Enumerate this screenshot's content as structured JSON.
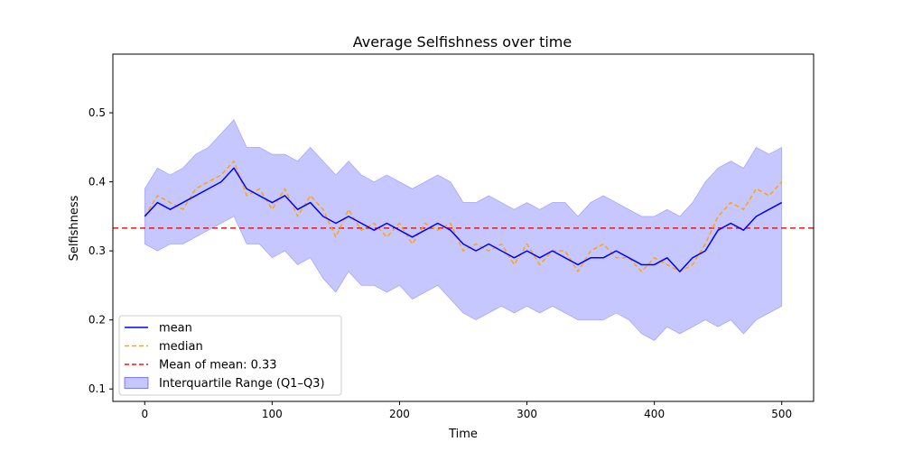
{
  "chart_data": {
    "type": "line",
    "title": "Average Selfishness over time",
    "xlabel": "Time",
    "ylabel": "Selfishness",
    "xlim": [
      -25,
      525
    ],
    "ylim": [
      0.082,
      0.585
    ],
    "xticks": [
      0,
      100,
      200,
      300,
      400,
      500
    ],
    "xtick_labels": [
      "0",
      "100",
      "200",
      "300",
      "400",
      "500"
    ],
    "yticks": [
      0.1,
      0.2,
      0.3,
      0.4,
      0.5
    ],
    "ytick_labels": [
      "0.1",
      "0.2",
      "0.3",
      "0.4",
      "0.5"
    ],
    "grid": false,
    "legend_position": "lower-left",
    "reference_line": {
      "value": 0.333,
      "label": "Mean of mean: 0.33",
      "color": "#e41a1c"
    },
    "series": [
      {
        "name": "mean",
        "style": "solid",
        "color": "#0000ff",
        "x": [
          0,
          10,
          20,
          30,
          40,
          50,
          60,
          70,
          80,
          90,
          100,
          110,
          120,
          130,
          140,
          150,
          160,
          170,
          180,
          190,
          200,
          210,
          220,
          230,
          240,
          250,
          260,
          270,
          280,
          290,
          300,
          310,
          320,
          330,
          340,
          350,
          360,
          370,
          380,
          390,
          400,
          410,
          420,
          430,
          440,
          450,
          460,
          470,
          480,
          490,
          500
        ],
        "values": [
          0.35,
          0.37,
          0.36,
          0.37,
          0.38,
          0.39,
          0.4,
          0.42,
          0.39,
          0.38,
          0.37,
          0.38,
          0.36,
          0.37,
          0.35,
          0.34,
          0.35,
          0.34,
          0.33,
          0.34,
          0.33,
          0.32,
          0.33,
          0.34,
          0.33,
          0.31,
          0.3,
          0.31,
          0.3,
          0.29,
          0.3,
          0.29,
          0.3,
          0.29,
          0.28,
          0.29,
          0.29,
          0.3,
          0.29,
          0.28,
          0.28,
          0.29,
          0.27,
          0.29,
          0.3,
          0.33,
          0.34,
          0.33,
          0.35,
          0.36,
          0.37
        ]
      },
      {
        "name": "median",
        "style": "dashed",
        "color": "#ffa500",
        "x": [
          0,
          10,
          20,
          30,
          40,
          50,
          60,
          70,
          80,
          90,
          100,
          110,
          120,
          130,
          140,
          150,
          160,
          170,
          180,
          190,
          200,
          210,
          220,
          230,
          240,
          250,
          260,
          270,
          280,
          290,
          300,
          310,
          320,
          330,
          340,
          350,
          360,
          370,
          380,
          390,
          400,
          410,
          420,
          430,
          440,
          450,
          460,
          470,
          480,
          490,
          500
        ],
        "values": [
          0.35,
          0.38,
          0.37,
          0.36,
          0.39,
          0.4,
          0.41,
          0.43,
          0.38,
          0.39,
          0.36,
          0.39,
          0.35,
          0.38,
          0.36,
          0.32,
          0.36,
          0.33,
          0.34,
          0.32,
          0.34,
          0.31,
          0.34,
          0.33,
          0.34,
          0.3,
          0.31,
          0.3,
          0.31,
          0.28,
          0.31,
          0.28,
          0.3,
          0.3,
          0.27,
          0.3,
          0.31,
          0.29,
          0.29,
          0.27,
          0.29,
          0.28,
          0.27,
          0.28,
          0.31,
          0.35,
          0.37,
          0.36,
          0.39,
          0.38,
          0.4
        ]
      },
      {
        "name": "Interquartile Range (Q1–Q3)",
        "style": "band",
        "color": "#0000ff",
        "x": [
          0,
          10,
          20,
          30,
          40,
          50,
          60,
          70,
          80,
          90,
          100,
          110,
          120,
          130,
          140,
          150,
          160,
          170,
          180,
          190,
          200,
          210,
          220,
          230,
          240,
          250,
          260,
          270,
          280,
          290,
          300,
          310,
          320,
          330,
          340,
          350,
          360,
          370,
          380,
          390,
          400,
          410,
          420,
          430,
          440,
          450,
          460,
          470,
          480,
          490,
          500
        ],
        "lower": [
          0.31,
          0.3,
          0.31,
          0.31,
          0.32,
          0.33,
          0.34,
          0.35,
          0.31,
          0.31,
          0.29,
          0.3,
          0.28,
          0.29,
          0.26,
          0.24,
          0.27,
          0.25,
          0.25,
          0.24,
          0.25,
          0.23,
          0.24,
          0.25,
          0.23,
          0.21,
          0.2,
          0.21,
          0.22,
          0.21,
          0.22,
          0.21,
          0.22,
          0.21,
          0.2,
          0.2,
          0.2,
          0.21,
          0.2,
          0.18,
          0.17,
          0.19,
          0.18,
          0.19,
          0.2,
          0.19,
          0.2,
          0.18,
          0.2,
          0.21,
          0.22
        ],
        "upper": [
          0.39,
          0.42,
          0.41,
          0.42,
          0.44,
          0.45,
          0.47,
          0.49,
          0.45,
          0.45,
          0.44,
          0.44,
          0.43,
          0.45,
          0.43,
          0.41,
          0.43,
          0.41,
          0.4,
          0.41,
          0.4,
          0.39,
          0.4,
          0.41,
          0.4,
          0.37,
          0.37,
          0.38,
          0.37,
          0.36,
          0.37,
          0.36,
          0.37,
          0.37,
          0.35,
          0.37,
          0.38,
          0.37,
          0.36,
          0.35,
          0.35,
          0.36,
          0.35,
          0.37,
          0.4,
          0.42,
          0.43,
          0.42,
          0.45,
          0.44,
          0.45
        ]
      }
    ],
    "legend": [
      {
        "label": "mean",
        "kind": "line",
        "style": "solid",
        "color": "#0000ff"
      },
      {
        "label": "median",
        "kind": "line",
        "style": "dashed",
        "color": "#ffa500"
      },
      {
        "label": "Mean of mean: 0.33",
        "kind": "line",
        "style": "dashed",
        "color": "#e41a1c"
      },
      {
        "label": "Interquartile Range (Q1–Q3)",
        "kind": "patch",
        "style": "band",
        "color": "#0000ff"
      }
    ]
  }
}
